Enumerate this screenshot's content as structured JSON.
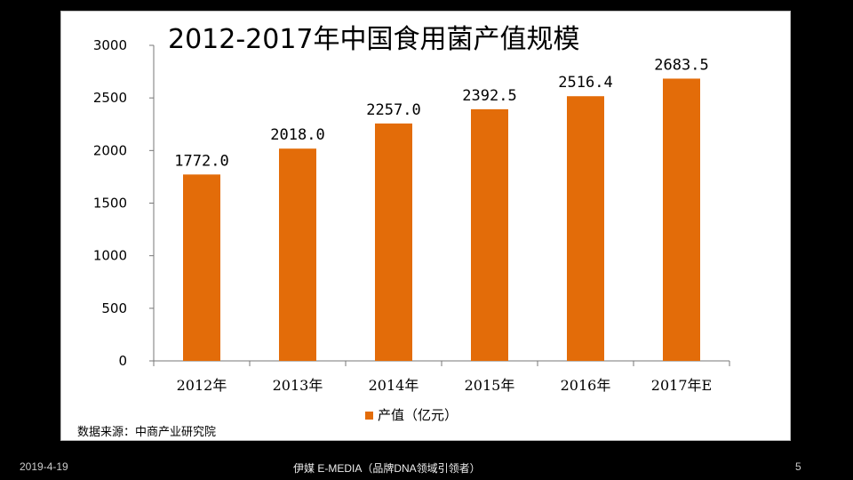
{
  "chart_data": {
    "type": "bar",
    "title": "2012-2017年中国食用菌产值规模",
    "categories": [
      "2012年",
      "2013年",
      "2014年",
      "2015年",
      "2016年",
      "2017年E"
    ],
    "series": [
      {
        "name": "产值（亿元）",
        "values": [
          1772.0,
          2018.0,
          2257.0,
          2392.5,
          2516.4,
          2683.5
        ],
        "color": "#e36c09"
      }
    ],
    "data_labels": [
      "1772.0",
      "2018.0",
      "2257.0",
      "2392.5",
      "2516.4",
      "2683.5"
    ],
    "ylim": [
      0,
      3000
    ],
    "yticks": [
      0,
      500,
      1000,
      1500,
      2000,
      2500,
      3000
    ],
    "ytick_labels": [
      "0",
      "500",
      "1000",
      "1500",
      "2000",
      "2500",
      "3000"
    ],
    "legend_position": "bottom",
    "grid": false
  },
  "source_text": "数据来源：中商产业研究院",
  "footer": {
    "date": "2019-4-19",
    "center": "伊媒 E-MEDIA（品牌DNA领域引领者）",
    "page": "5"
  }
}
